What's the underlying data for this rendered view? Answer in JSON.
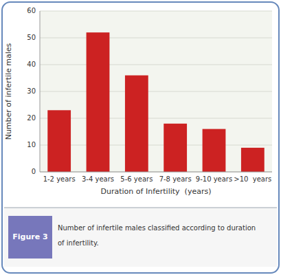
{
  "chart_data": {
    "type": "bar",
    "categories": [
      "1-2 years",
      "3-4 years",
      "5-6 years",
      "7-8 years",
      "9-10 years",
      ">10  years"
    ],
    "values": [
      23,
      52,
      36,
      18,
      16,
      9
    ],
    "color": "#cc2222",
    "xlabel": "Duration of Infertility  (years)",
    "ylabel": "Number of infertile males",
    "ylim": [
      0,
      60
    ],
    "yticks": [
      0,
      10,
      20,
      30,
      40,
      50,
      60
    ],
    "grid": true,
    "figure_label": "Figure 3",
    "caption": [
      "Number of infertile males classified according to duration",
      "of infertility."
    ]
  }
}
